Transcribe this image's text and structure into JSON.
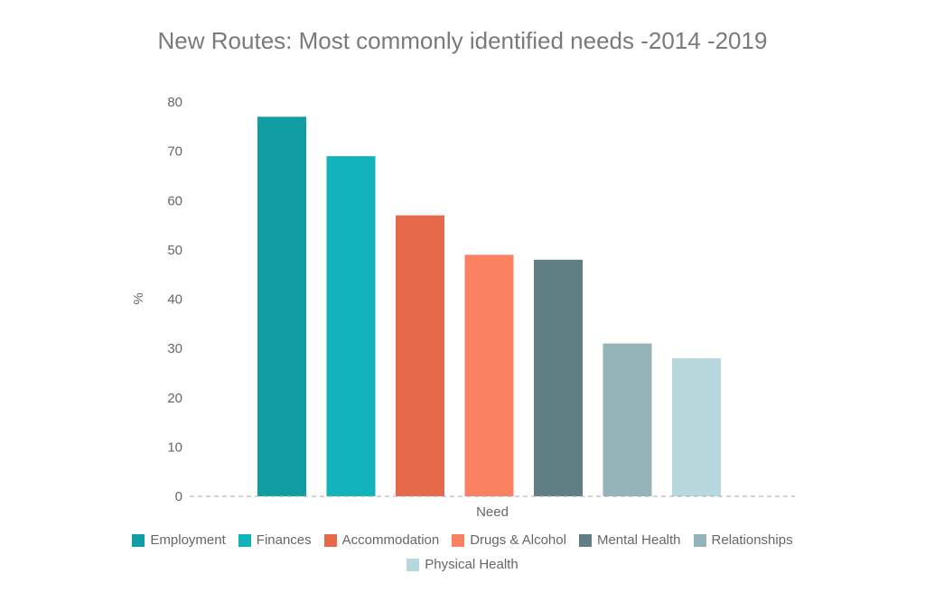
{
  "chart_data": {
    "type": "bar",
    "title": "New Routes: Most commonly identified needs -2014 -2019",
    "xlabel": "Need",
    "ylabel": "%",
    "ylim": [
      0,
      80
    ],
    "yticks": [
      "0",
      "10",
      "20",
      "30",
      "40",
      "50",
      "60",
      "70",
      "80"
    ],
    "grid": false,
    "legend_position": "bottom",
    "categories": [
      "Employment",
      "Finances",
      "Accommodation",
      "Drugs & Alcohol",
      "Mental Health",
      "Relationships",
      "Physical Health"
    ],
    "values": [
      77,
      69,
      57,
      49,
      48,
      31,
      28
    ],
    "colors": [
      "#119da3",
      "#12b3bb",
      "#e5694b",
      "#fa8263",
      "#5f7f82",
      "#94b4b7",
      "#b7d8dc"
    ]
  }
}
